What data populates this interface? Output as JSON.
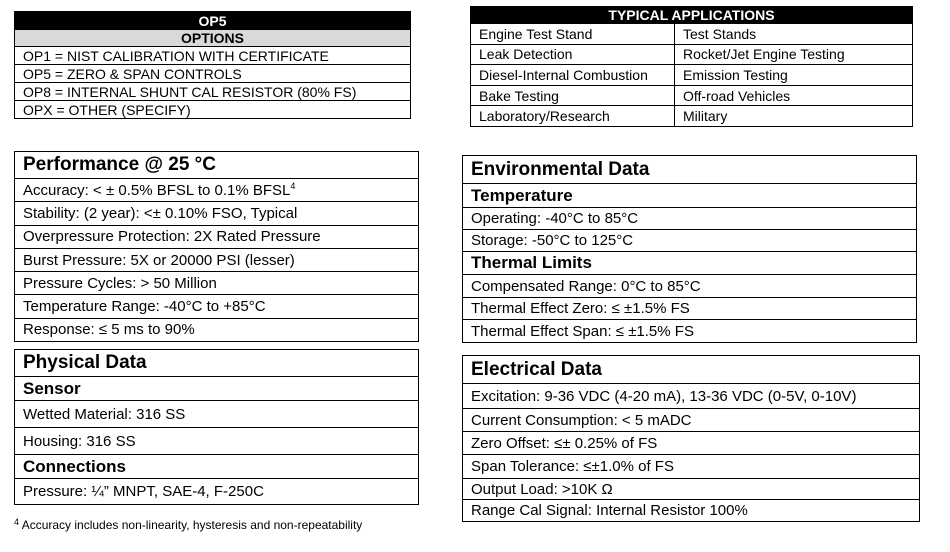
{
  "options": {
    "title": "OP5",
    "header": "OPTIONS",
    "rows": [
      "OP1 = NIST CALIBRATION WITH CERTIFICATE",
      "OP5 = ZERO & SPAN CONTROLS",
      "OP8 = INTERNAL SHUNT CAL RESISTOR (80% FS)",
      "OPX = OTHER (SPECIFY)"
    ]
  },
  "applications": {
    "title": "TYPICAL APPLICATIONS",
    "rows": [
      [
        "Engine Test Stand",
        "Test Stands"
      ],
      [
        "Leak Detection",
        "Rocket/Jet Engine Testing"
      ],
      [
        "Diesel-Internal Combustion",
        "Emission Testing"
      ],
      [
        "Bake Testing",
        "Off-road Vehicles"
      ],
      [
        "Laboratory/Research",
        "Military"
      ]
    ]
  },
  "performance": {
    "title": "Performance @ 25 °C",
    "rows": [
      "Accuracy:  < ± 0.5% BFSL to 0.1% BFSL",
      "Stability: (2 year):  <± 0.10% FSO, Typical",
      "Overpressure Protection: 2X Rated Pressure",
      "Burst Pressure:  5X or 20000 PSI (lesser)",
      "Pressure Cycles: > 50 Million",
      "Temperature Range: -40°C to +85°C",
      "Response: ≤ 5 ms to 90%"
    ],
    "footnote_ref": "4"
  },
  "physical": {
    "title": "Physical Data",
    "sections": [
      {
        "heading": "Sensor",
        "rows": [
          "Wetted Material:  316 SS",
          "Housing:  316 SS"
        ]
      },
      {
        "heading": "Connections",
        "rows": [
          "Pressure:  ¼” MNPT, SAE-4, F-250C"
        ]
      }
    ]
  },
  "environmental": {
    "title": "Environmental Data",
    "sections": [
      {
        "heading": "Temperature",
        "rows": [
          "Operating:  -40°C to 85°C",
          "Storage:  -50°C to 125°C"
        ]
      },
      {
        "heading": "Thermal Limits",
        "rows": [
          "Compensated Range:  0°C to 85°C",
          "Thermal Effect Zero:  ≤ ±1.5% FS",
          "Thermal Effect Span: ≤ ±1.5% FS"
        ]
      }
    ]
  },
  "electrical": {
    "title": "Electrical Data",
    "rows": [
      "Excitation:  9-36 VDC (4-20 mA), 13-36 VDC (0-5V, 0-10V)",
      "Current Consumption:  < 5 mADC",
      "Zero Offset:  ≤± 0.25% of FS",
      "Span Tolerance:  ≤±1.0% of FS",
      "Output Load:  >10K Ω",
      "Range Cal Signal: Internal Resistor 100%"
    ]
  },
  "footnote": {
    "mark": "4",
    "text": "Accuracy includes non-linearity, hysteresis and non-repeatability"
  }
}
